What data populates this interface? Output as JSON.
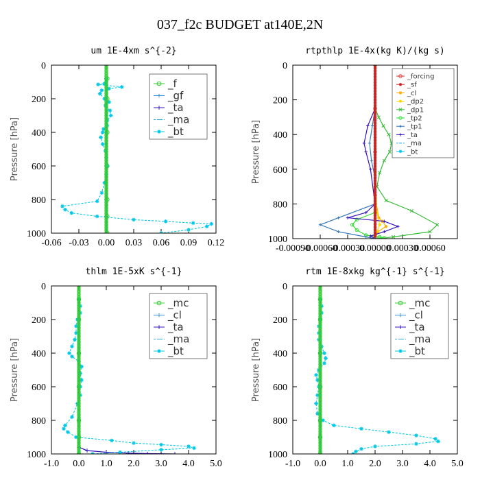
{
  "title": "037_f2c  BUDGET at140E,2N",
  "chart_data": [
    {
      "type": "line",
      "title": "um   1E-4xm s^{-2}",
      "ylabel": "Pressure [hPa]",
      "xlim": [
        -0.06,
        0.12
      ],
      "ylim": [
        1000,
        0
      ],
      "xticks": [
        "-0.06",
        "-0.03",
        "0.00",
        "0.03",
        "0.06",
        "0.09",
        "0.12"
      ],
      "yticks": [
        "0",
        "200",
        "400",
        "600",
        "800",
        "1000"
      ],
      "legend": "top-right",
      "series": [
        {
          "name": "_f",
          "color": "#33cc33",
          "marker": "o",
          "x": [
            0.001,
            0.001,
            0.001,
            0.001,
            0.001,
            0.001,
            0.001
          ],
          "y": [
            80,
            200,
            400,
            600,
            800,
            900,
            1000
          ]
        },
        {
          "name": "_gf",
          "color": "#2a8fd6",
          "marker": "+",
          "x": [
            0.0,
            0.0,
            0.0,
            0.0,
            0.0,
            0.0,
            0.0
          ],
          "y": [
            80,
            200,
            400,
            600,
            800,
            900,
            1000
          ]
        },
        {
          "name": "_ta",
          "color": "#3311bb",
          "marker": "+",
          "x": [
            0.0,
            0.0,
            0.0,
            0.0,
            0.0,
            0.0,
            0.0
          ],
          "y": [
            80,
            200,
            400,
            600,
            800,
            900,
            1000
          ]
        },
        {
          "name": "_ma",
          "color": "#22aadd",
          "marker": "-",
          "x": [
            0.0,
            0.0,
            0.0,
            0.0,
            0.0,
            0.0,
            0.0
          ],
          "y": [
            80,
            200,
            400,
            600,
            800,
            900,
            1000
          ]
        },
        {
          "name": "_bt",
          "color": "#00c8e8",
          "marker": "*",
          "x": [
            0.0,
            0.0,
            -0.002,
            -0.009,
            0.0,
            0.017,
            0.003,
            -0.005,
            -0.007,
            -0.002,
            0.003,
            -0.001,
            0.004,
            0.005,
            0.001,
            0.001,
            -0.003,
            -0.004,
            -0.006,
            -0.004,
            -0.001,
            0.0,
            0.001,
            0.0,
            -0.002,
            -0.005,
            -0.01,
            -0.048,
            -0.045,
            -0.038,
            -0.01,
            0.03,
            0.065,
            0.095,
            0.115,
            0.11,
            0.09,
            0.06
          ],
          "y": [
            80,
            100,
            110,
            115,
            120,
            130,
            140,
            150,
            170,
            200,
            220,
            240,
            270,
            300,
            330,
            360,
            380,
            400,
            430,
            470,
            510,
            550,
            600,
            650,
            700,
            760,
            810,
            840,
            860,
            880,
            900,
            920,
            930,
            940,
            945,
            960,
            980,
            1000
          ]
        }
      ]
    },
    {
      "type": "line",
      "title": "rtpthlp   1E-4x(kg K)/(kg s)",
      "ylabel": "Pressure [hPa]",
      "xlim": [
        -0.0009,
        0.0009
      ],
      "ylim": [
        1000,
        0
      ],
      "xticks": [
        "-0.00090",
        "-0.00060",
        "-0.00030",
        "0.00000",
        "0.00030",
        "0.00060"
      ],
      "yticks": [
        "0",
        "200",
        "400",
        "600",
        "800",
        "1000"
      ],
      "legend": "top-right",
      "series": [
        {
          "name": "_forcing",
          "color": "#dd3333",
          "marker": "o",
          "x": [
            0,
            0,
            0,
            0,
            0
          ],
          "y": [
            0,
            250,
            500,
            750,
            1000
          ]
        },
        {
          "name": "_sf",
          "color": "#cc2222",
          "marker": "*",
          "x": [
            0,
            0,
            0,
            0,
            0
          ],
          "y": [
            0,
            250,
            500,
            750,
            1000
          ]
        },
        {
          "name": "_cl",
          "color": "#ffaa00",
          "marker": "*",
          "x": [
            0,
            0,
            0,
            0,
            4e-05,
            8e-05,
            0.00012,
            3e-05,
            0
          ],
          "y": [
            0,
            250,
            500,
            750,
            880,
            900,
            930,
            960,
            1000
          ]
        },
        {
          "name": "_dp2",
          "color": "#ffd700",
          "marker": "*",
          "x": [
            0,
            0,
            0,
            2e-05,
            5e-05,
            2e-05,
            0
          ],
          "y": [
            0,
            250,
            600,
            850,
            920,
            960,
            1000
          ]
        },
        {
          "name": "_dp1",
          "color": "#33bb33",
          "marker": "x",
          "x": [
            0,
            4e-05,
            9e-05,
            0.00015,
            0.00018,
            0.00016,
            0.0001,
            5e-05,
            2e-05,
            0.00012,
            0.0004,
            0.00068,
            0.0006,
            0.0002,
            4e-05
          ],
          "y": [
            250,
            300,
            350,
            400,
            450,
            500,
            550,
            620,
            700,
            780,
            840,
            920,
            960,
            990,
            1000
          ]
        },
        {
          "name": "_tp2",
          "color": "#33dd33",
          "marker": "o",
          "x": [
            0,
            0,
            -0.0002,
            -0.00025,
            -0.0002,
            -0.0001,
            5e-05,
            0.0001,
            0
          ],
          "y": [
            0,
            850,
            890,
            920,
            950,
            980,
            990,
            995,
            1000
          ]
        },
        {
          "name": "_tp1",
          "color": "#3377bb",
          "marker": "+",
          "x": [
            0,
            -3e-05,
            -6e-05,
            -4e-05,
            0,
            0,
            -0.0004,
            -0.0006,
            -0.0004,
            -0.0001,
            0
          ],
          "y": [
            250,
            350,
            450,
            550,
            650,
            800,
            880,
            920,
            960,
            990,
            1000
          ]
        },
        {
          "name": "_ta",
          "color": "#3311bb",
          "marker": "+",
          "x": [
            0,
            -8e-05,
            -0.00012,
            -0.0001,
            -5e-05,
            0,
            -0.0001,
            -0.0003,
            0.0001,
            0.00025,
            0.0001,
            -5e-05,
            0
          ],
          "y": [
            250,
            350,
            450,
            500,
            600,
            800,
            850,
            880,
            900,
            930,
            960,
            985,
            1000
          ]
        },
        {
          "name": "_ma",
          "color": "#22aadd",
          "marker": "-",
          "x": [
            0,
            0,
            0,
            0,
            0
          ],
          "y": [
            0,
            250,
            500,
            750,
            1000
          ]
        },
        {
          "name": "_bt",
          "color": "#00c8e8",
          "marker": "*",
          "x": [
            0,
            0,
            0,
            0,
            0
          ],
          "y": [
            0,
            250,
            500,
            750,
            1000
          ]
        }
      ]
    },
    {
      "type": "line",
      "title": "thlm   1E-5xK s^{-1}",
      "ylabel": "Pressure [hPa]",
      "xlim": [
        -1.0,
        5.0
      ],
      "ylim": [
        1000,
        0
      ],
      "xticks": [
        "-1.0",
        "0.0",
        "1.0",
        "2.0",
        "3.0",
        "4.0",
        "5.0"
      ],
      "yticks": [
        "0",
        "200",
        "400",
        "600",
        "800",
        "1000"
      ],
      "legend": "top-right",
      "series": [
        {
          "name": "_mc",
          "color": "#33cc33",
          "marker": "o",
          "x": [
            0,
            0,
            0,
            0,
            0,
            0,
            0
          ],
          "y": [
            80,
            200,
            400,
            600,
            800,
            900,
            1000
          ]
        },
        {
          "name": "_cl",
          "color": "#2a8fd6",
          "marker": "+",
          "x": [
            0,
            0,
            0,
            0,
            0,
            0,
            0
          ],
          "y": [
            80,
            200,
            400,
            600,
            800,
            900,
            1000
          ]
        },
        {
          "name": "_ta",
          "color": "#3311bb",
          "marker": "+",
          "x": [
            0,
            0,
            0,
            0,
            0.3,
            1.0,
            1.8,
            2.5,
            3.5
          ],
          "y": [
            80,
            400,
            800,
            960,
            980,
            990,
            995,
            998,
            1000
          ]
        },
        {
          "name": "_ma",
          "color": "#22aadd",
          "marker": "-",
          "x": [
            0,
            0,
            0,
            0,
            0,
            0,
            0
          ],
          "y": [
            80,
            200,
            400,
            600,
            800,
            900,
            1000
          ]
        },
        {
          "name": "_bt",
          "color": "#00c8e8",
          "marker": "*",
          "x": [
            0.0,
            0.05,
            0.05,
            -0.05,
            -0.1,
            -0.1,
            -0.15,
            -0.25,
            -0.35,
            -0.25,
            0.0,
            0.1,
            0.05,
            0.1,
            0.05,
            0.05,
            -0.05,
            -0.25,
            -0.5,
            -0.55,
            -0.4,
            -0.1,
            1.2,
            2.0,
            3.0,
            4.0,
            4.2,
            3.0,
            1.5,
            0.5
          ],
          "y": [
            80,
            120,
            160,
            200,
            240,
            280,
            320,
            360,
            400,
            420,
            450,
            480,
            520,
            560,
            600,
            650,
            700,
            780,
            830,
            850,
            870,
            900,
            920,
            935,
            945,
            955,
            965,
            975,
            990,
            1000
          ]
        }
      ]
    },
    {
      "type": "line",
      "title": "rtm   1E-8xkg kg^{-1} s^{-1}",
      "ylabel": "Pressure [hPa]",
      "xlim": [
        -1.0,
        5.0
      ],
      "ylim": [
        1000,
        0
      ],
      "xticks": [
        "-1.0",
        "0.0",
        "1.0",
        "2.0",
        "3.0",
        "4.0",
        "5.0"
      ],
      "yticks": [
        "0",
        "200",
        "400",
        "600",
        "800",
        "1000"
      ],
      "legend": "top-right",
      "series": [
        {
          "name": "_mc",
          "color": "#33cc33",
          "marker": "o",
          "x": [
            0,
            0,
            0,
            0,
            0,
            0,
            0
          ],
          "y": [
            80,
            200,
            400,
            600,
            800,
            900,
            1000
          ]
        },
        {
          "name": "_cl",
          "color": "#2a8fd6",
          "marker": "+",
          "x": [
            0,
            0,
            0,
            0,
            0,
            0,
            0
          ],
          "y": [
            80,
            200,
            400,
            600,
            800,
            900,
            1000
          ]
        },
        {
          "name": "_ta",
          "color": "#3311bb",
          "marker": "+",
          "x": [
            0,
            0,
            0,
            0,
            0,
            0,
            0
          ],
          "y": [
            80,
            200,
            400,
            600,
            800,
            900,
            1000
          ]
        },
        {
          "name": "_ma",
          "color": "#22aadd",
          "marker": "-",
          "x": [
            0,
            0,
            0,
            0,
            0,
            0,
            0
          ],
          "y": [
            80,
            200,
            400,
            600,
            800,
            900,
            1000
          ]
        },
        {
          "name": "_bt",
          "color": "#00c8e8",
          "marker": "*",
          "x": [
            0.0,
            0.05,
            0.05,
            0.0,
            -0.05,
            -0.05,
            -0.05,
            0.05,
            0.15,
            0.2,
            0.15,
            -0.05,
            -0.15,
            -0.1,
            -0.05,
            -0.1,
            -0.15,
            -0.1,
            0.1,
            0.5,
            1.5,
            2.5,
            3.5,
            4.2,
            4.3,
            3.5,
            2.0,
            1.5,
            1.3,
            1.2
          ],
          "y": [
            80,
            120,
            160,
            200,
            240,
            280,
            320,
            360,
            400,
            430,
            460,
            500,
            530,
            560,
            600,
            650,
            700,
            760,
            800,
            830,
            850,
            870,
            890,
            910,
            925,
            940,
            955,
            970,
            985,
            1000
          ]
        }
      ]
    }
  ]
}
